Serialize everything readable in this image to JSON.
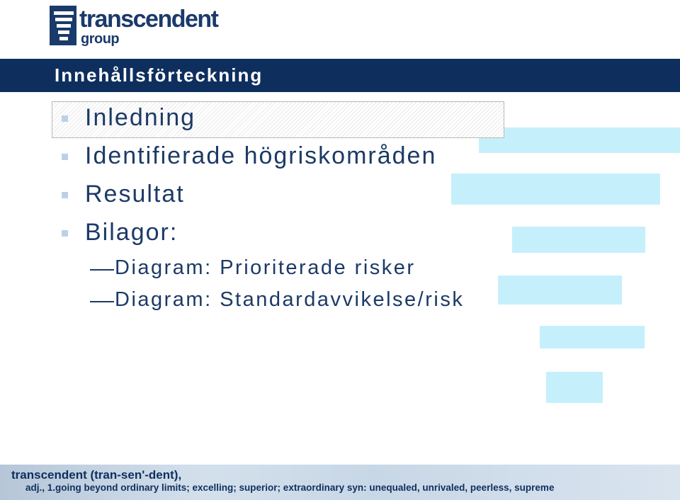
{
  "logo": {
    "word1": "transcendent",
    "word2": "group"
  },
  "title": "Innehållsförteckning",
  "items": [
    {
      "label": "Inledning"
    },
    {
      "label": "Identifierade högriskområden"
    },
    {
      "label": "Resultat"
    },
    {
      "label": "Bilagor:"
    }
  ],
  "subitems": [
    {
      "label": "Diagram: Prioriterade risker"
    },
    {
      "label": "Diagram: Standardavvikelse/risk"
    }
  ],
  "footer": {
    "line1": "transcendent (tran-sen'-dent),",
    "line2": "adj., 1.going beyond ordinary limits; excelling; superior; extraordinary   syn: unequaled, unrivaled, peerless, supreme"
  },
  "colors": {
    "title_bar": "#0e2f5e",
    "text": "#1c3a66",
    "decor": "#c5f0fb",
    "bullet": "#bcd0e8"
  }
}
